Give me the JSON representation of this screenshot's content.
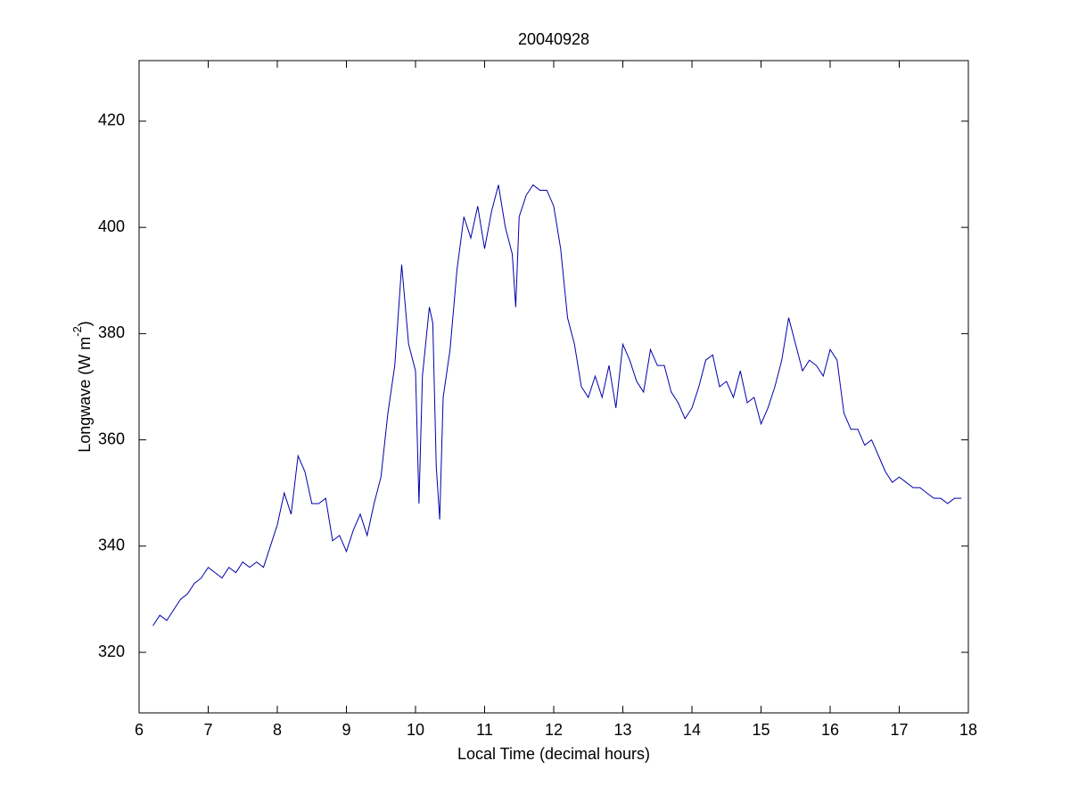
{
  "chart_data": {
    "type": "line",
    "title": "20040928",
    "x_label": "Local Time (decimal hours)",
    "y_label": [
      "Longwave (W m",
      "-2",
      ")"
    ],
    "xlim": [
      6,
      18
    ],
    "xticks": [
      6,
      7,
      8,
      9,
      10,
      11,
      12,
      13,
      14,
      15,
      16,
      17,
      18
    ],
    "ylim": [
      308.6,
      431.4
    ],
    "yticks": [
      320,
      340,
      360,
      380,
      400,
      420
    ],
    "grid": false,
    "series": [
      {
        "name": "Longwave",
        "color": "#0000aa",
        "x": [
          6.2,
          6.3,
          6.4,
          6.5,
          6.6,
          6.7,
          6.8,
          6.9,
          7.0,
          7.1,
          7.2,
          7.3,
          7.4,
          7.5,
          7.6,
          7.7,
          7.8,
          7.9,
          8.0,
          8.1,
          8.2,
          8.3,
          8.4,
          8.5,
          8.6,
          8.7,
          8.8,
          8.9,
          9.0,
          9.1,
          9.2,
          9.3,
          9.4,
          9.5,
          9.6,
          9.7,
          9.8,
          9.9,
          10.0,
          10.05,
          10.1,
          10.2,
          10.25,
          10.3,
          10.35,
          10.4,
          10.5,
          10.6,
          10.7,
          10.8,
          10.9,
          11.0,
          11.1,
          11.2,
          11.3,
          11.4,
          11.45,
          11.5,
          11.6,
          11.7,
          11.8,
          11.9,
          12.0,
          12.1,
          12.2,
          12.3,
          12.4,
          12.5,
          12.6,
          12.7,
          12.8,
          12.9,
          13.0,
          13.1,
          13.2,
          13.3,
          13.4,
          13.5,
          13.6,
          13.7,
          13.8,
          13.9,
          14.0,
          14.1,
          14.2,
          14.3,
          14.4,
          14.5,
          14.6,
          14.7,
          14.8,
          14.9,
          15.0,
          15.1,
          15.2,
          15.3,
          15.4,
          15.5,
          15.6,
          15.7,
          15.8,
          15.9,
          16.0,
          16.1,
          16.2,
          16.3,
          16.4,
          16.5,
          16.6,
          16.7,
          16.8,
          16.9,
          17.0,
          17.1,
          17.2,
          17.3,
          17.4,
          17.5,
          17.6,
          17.7,
          17.8,
          17.9
        ],
        "values": [
          325,
          327,
          326,
          328,
          330,
          331,
          333,
          334,
          336,
          335,
          334,
          336,
          335,
          337,
          336,
          337,
          336,
          340,
          344,
          350,
          346,
          357,
          354,
          348,
          348,
          349,
          341,
          342,
          339,
          343,
          346,
          342,
          348,
          353,
          365,
          374,
          393,
          378,
          373,
          348,
          372,
          385,
          382,
          355,
          345,
          368,
          377,
          392,
          402,
          398,
          404,
          396,
          403,
          408,
          400,
          395,
          385,
          402,
          406,
          408,
          407,
          407,
          404,
          396,
          383,
          378,
          370,
          368,
          372,
          368,
          374,
          366,
          378,
          375,
          371,
          369,
          377,
          374,
          374,
          369,
          367,
          364,
          366,
          370,
          375,
          376,
          370,
          371,
          368,
          373,
          367,
          368,
          363,
          366,
          370,
          375,
          383,
          378,
          373,
          375,
          374,
          372,
          377,
          375,
          365,
          362,
          362,
          359,
          360,
          357,
          354,
          352,
          353,
          352,
          351,
          351,
          350,
          349,
          349,
          348,
          349,
          349
        ]
      }
    ]
  }
}
